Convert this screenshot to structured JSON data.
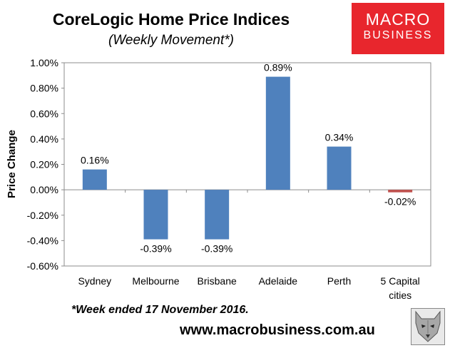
{
  "header": {
    "title": "CoreLogic Home Price Indices",
    "subtitle": "(Weekly Movement*)"
  },
  "logo": {
    "line1": "MACRO",
    "line2": "BUSINESS",
    "color": "#e8262d"
  },
  "footnote": "*Week ended 17 November 2016.",
  "website": "www.macrobusiness.com.au",
  "chart_data": {
    "type": "bar",
    "title": "",
    "xlabel": "",
    "ylabel": "Price Change",
    "categories": [
      "Sydney",
      "Melbourne",
      "Brisbane",
      "Adelaide",
      "Perth",
      "5 Capital cities"
    ],
    "values": [
      0.16,
      -0.39,
      -0.39,
      0.89,
      0.34,
      -0.02
    ],
    "data_labels": [
      "0.16%",
      "-0.39%",
      "-0.39%",
      "0.89%",
      "0.34%",
      "-0.02%"
    ],
    "ylim": [
      -0.6,
      1.0
    ],
    "yticks": [
      1.0,
      0.8,
      0.6,
      0.4,
      0.2,
      0.0,
      -0.2,
      -0.4,
      -0.6
    ],
    "ytick_labels": [
      "1.00%",
      "0.80%",
      "0.60%",
      "0.40%",
      "0.20%",
      "0.00%",
      "-0.20%",
      "-0.40%",
      "-0.60%"
    ],
    "bar_colors": [
      "#4f81bd",
      "#4f81bd",
      "#4f81bd",
      "#4f81bd",
      "#4f81bd",
      "#c0504d"
    ],
    "grid": false,
    "legend": "none"
  }
}
